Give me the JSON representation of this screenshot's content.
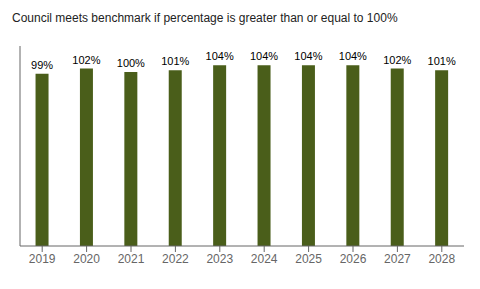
{
  "chart_data": {
    "type": "bar",
    "title": "Council meets benchmark if percentage is greater than or equal to 100%",
    "categories": [
      "2019",
      "2020",
      "2021",
      "2022",
      "2023",
      "2024",
      "2025",
      "2026",
      "2027",
      "2028"
    ],
    "values": [
      99,
      102,
      100,
      101,
      104,
      104,
      104,
      104,
      102,
      101
    ],
    "value_labels": [
      "99%",
      "102%",
      "100%",
      "101%",
      "104%",
      "104%",
      "104%",
      "104%",
      "102%",
      "101%"
    ],
    "color": "#4a5e1a",
    "ylim": [
      0,
      115
    ],
    "grid": false,
    "data_labels": true,
    "tick_labels": "x"
  }
}
